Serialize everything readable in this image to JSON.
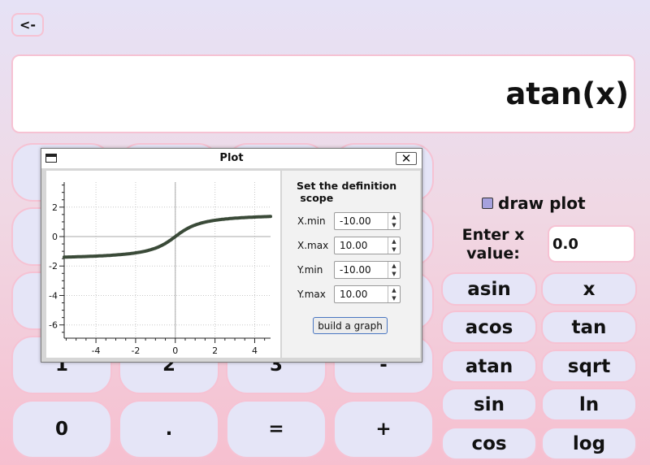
{
  "back_button": "<-",
  "display": {
    "expression": "atan(x)"
  },
  "keypad": {
    "row4": [
      "1",
      "2",
      "3",
      "-"
    ],
    "row5": [
      "0",
      ".",
      "=",
      "+"
    ]
  },
  "draw_plot": {
    "label": "draw plot",
    "checked": true
  },
  "x_value": {
    "label_line1": "Enter x",
    "label_line2": "value:",
    "value": "0.0"
  },
  "functions": [
    [
      "asin",
      "x"
    ],
    [
      "acos",
      "tan"
    ],
    [
      "atan",
      "sqrt"
    ],
    [
      "sin",
      "ln"
    ],
    [
      "cos",
      "log"
    ]
  ],
  "plot_window": {
    "title": "Plot",
    "close_icon": "✕",
    "scope_title_line1": "Set the definition",
    "scope_title_line2": " scope",
    "fields": [
      {
        "label": "X.min",
        "value": "-10.00"
      },
      {
        "label": "X.max",
        "value": "10.00"
      },
      {
        "label": "Y.min",
        "value": "-10.00"
      },
      {
        "label": "Y.max",
        "value": "10.00"
      }
    ],
    "build_button": "build a graph"
  },
  "chart_data": {
    "type": "line",
    "title": "",
    "xlabel": "",
    "ylabel": "",
    "xlim": [
      -5.6,
      4.8
    ],
    "ylim": [
      -6.9,
      3.7
    ],
    "grid": true,
    "x_ticks": [
      -4,
      -2,
      0,
      2,
      4
    ],
    "y_ticks": [
      2,
      0,
      -2,
      -4,
      -6
    ],
    "series": [
      {
        "function": "atan(x)",
        "color": "#3a4a38"
      }
    ]
  },
  "colors": {
    "button_fill": "#e5e5f7",
    "button_border": "#f6c2d3",
    "plot_line": "#3a4a38"
  }
}
